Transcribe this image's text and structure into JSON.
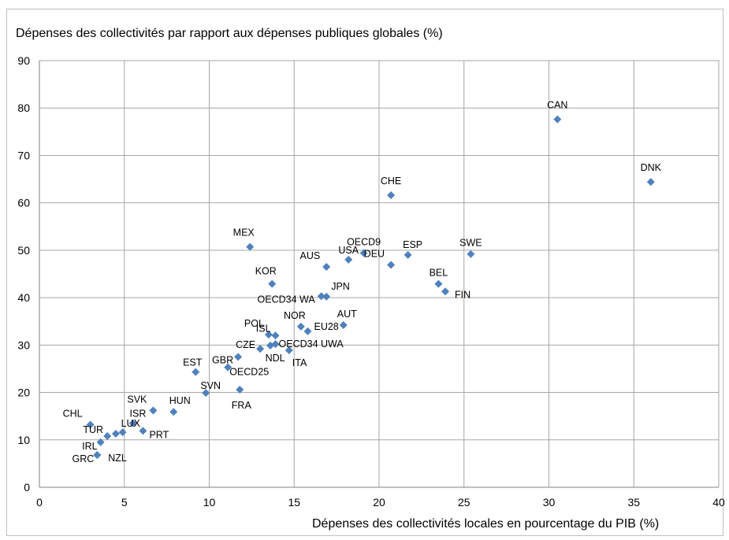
{
  "chart_data": {
    "type": "scatter",
    "title": "",
    "ylabel": "Dépenses des collectivités par rapport aux dépenses publiques globales (%)",
    "xlabel": "Dépenses des collectivités locales en pourcentage du PIB (%)",
    "xlim": [
      0,
      40
    ],
    "ylim": [
      0,
      90
    ],
    "xticks": [
      "0",
      "5",
      "10",
      "15",
      "20",
      "25",
      "30",
      "35",
      "40"
    ],
    "yticks": [
      "0",
      "10",
      "20",
      "30",
      "40",
      "50",
      "60",
      "70",
      "80",
      "90"
    ],
    "grid": true,
    "marker_color": "#4F81BD",
    "points": [
      {
        "label": "CAN",
        "x": 30.5,
        "y": 77.6
      },
      {
        "label": "DNK",
        "x": 36.0,
        "y": 64.4
      },
      {
        "label": "CHE",
        "x": 20.7,
        "y": 61.6
      },
      {
        "label": "MEX",
        "x": 12.4,
        "y": 50.7
      },
      {
        "label": "OECD9",
        "x": 19.1,
        "y": 49.4
      },
      {
        "label": "SWE",
        "x": 25.4,
        "y": 49.2
      },
      {
        "label": "ESP",
        "x": 21.7,
        "y": 49.0
      },
      {
        "label": "USA",
        "x": 18.2,
        "y": 48.0
      },
      {
        "label": "DEU",
        "x": 20.7,
        "y": 46.9
      },
      {
        "label": "AUS",
        "x": 16.9,
        "y": 46.5
      },
      {
        "label": "KOR",
        "x": 13.7,
        "y": 42.9
      },
      {
        "label": "BEL",
        "x": 23.5,
        "y": 42.9
      },
      {
        "label": "FIN",
        "x": 23.9,
        "y": 41.3
      },
      {
        "label": "OECD34 WA",
        "x": 16.6,
        "y": 40.3
      },
      {
        "label": "JPN",
        "x": 16.9,
        "y": 40.2
      },
      {
        "label": "AUT",
        "x": 17.9,
        "y": 34.2
      },
      {
        "label": "NOR",
        "x": 15.4,
        "y": 33.9
      },
      {
        "label": "EU28",
        "x": 15.8,
        "y": 32.9
      },
      {
        "label": "POL",
        "x": 13.5,
        "y": 32.2
      },
      {
        "label": "ISL",
        "x": 13.9,
        "y": 32.0
      },
      {
        "label": "OECD34 UWA",
        "x": 13.9,
        "y": 30.2
      },
      {
        "label": "NDL",
        "x": 13.6,
        "y": 29.9
      },
      {
        "label": "CZE",
        "x": 13.0,
        "y": 29.2
      },
      {
        "label": "ITA",
        "x": 14.7,
        "y": 28.9
      },
      {
        "label": "GBR",
        "x": 11.7,
        "y": 27.5
      },
      {
        "label": "OECD25",
        "x": 11.1,
        "y": 25.3
      },
      {
        "label": "EST",
        "x": 9.2,
        "y": 24.3
      },
      {
        "label": "FRA",
        "x": 11.8,
        "y": 20.6
      },
      {
        "label": "SVN",
        "x": 9.8,
        "y": 19.9
      },
      {
        "label": "SVK",
        "x": 6.7,
        "y": 16.2
      },
      {
        "label": "HUN",
        "x": 7.9,
        "y": 15.9
      },
      {
        "label": "ISR",
        "x": 5.5,
        "y": 13.5
      },
      {
        "label": "CHL",
        "x": 3.0,
        "y": 13.2
      },
      {
        "label": "PRT",
        "x": 6.1,
        "y": 11.9
      },
      {
        "label": "LUX",
        "x": 4.9,
        "y": 11.6
      },
      {
        "label": "TUR",
        "x": 4.5,
        "y": 11.3
      },
      {
        "label": "TUR2",
        "x": 4.0,
        "y": 10.8
      },
      {
        "label": "IRL",
        "x": 3.6,
        "y": 9.5
      },
      {
        "label": "GRC",
        "x": 3.4,
        "y": 6.8
      },
      {
        "label": "NZL",
        "x": 3.4,
        "y": 6.8
      }
    ],
    "labels": [
      {
        "text": "CAN",
        "x": 30.5,
        "y": 77.6
      },
      {
        "text": "DNK",
        "x": 36.0,
        "y": 64.4
      },
      {
        "text": "CHE",
        "x": 20.7,
        "y": 61.6
      },
      {
        "text": "MEX",
        "x": 12.4,
        "y": 50.7
      },
      {
        "text": "OECD9",
        "x": 19.1,
        "y": 49.4
      },
      {
        "text": "SWE",
        "x": 25.4,
        "y": 49.2
      },
      {
        "text": "ESP",
        "x": 21.7,
        "y": 49.0
      },
      {
        "text": "USA",
        "x": 18.2,
        "y": 48.0
      },
      {
        "text": "DEU",
        "x": 20.7,
        "y": 46.9
      },
      {
        "text": "AUS",
        "x": 16.9,
        "y": 46.5
      },
      {
        "text": "KOR",
        "x": 13.7,
        "y": 42.9
      },
      {
        "text": "BEL",
        "x": 23.5,
        "y": 42.9
      },
      {
        "text": "FIN",
        "x": 23.9,
        "y": 41.3
      },
      {
        "text": "OECD34 WA",
        "x": 16.6,
        "y": 40.3
      },
      {
        "text": "JPN",
        "x": 16.9,
        "y": 40.2
      },
      {
        "text": "AUT",
        "x": 17.9,
        "y": 34.2
      },
      {
        "text": "NOR",
        "x": 15.4,
        "y": 33.9
      },
      {
        "text": "EU28",
        "x": 15.8,
        "y": 32.9
      },
      {
        "text": "POL",
        "x": 13.5,
        "y": 32.2
      },
      {
        "text": "ISL",
        "x": 13.9,
        "y": 32.0
      },
      {
        "text": "OECD34 UWA",
        "x": 13.9,
        "y": 30.2
      },
      {
        "text": "NDL",
        "x": 13.6,
        "y": 29.9
      },
      {
        "text": "CZE",
        "x": 13.0,
        "y": 29.2
      },
      {
        "text": "ITA",
        "x": 14.7,
        "y": 28.9
      },
      {
        "text": "GBR",
        "x": 11.7,
        "y": 27.5
      },
      {
        "text": "OECD25",
        "x": 11.1,
        "y": 25.3
      },
      {
        "text": "EST",
        "x": 9.2,
        "y": 24.3
      },
      {
        "text": "FRA",
        "x": 11.8,
        "y": 20.6
      },
      {
        "text": "SVN",
        "x": 9.8,
        "y": 19.9
      },
      {
        "text": "SVK",
        "x": 6.7,
        "y": 16.2
      },
      {
        "text": "HUN",
        "x": 7.9,
        "y": 15.9
      },
      {
        "text": "ISR",
        "x": 5.5,
        "y": 13.5
      },
      {
        "text": "CHL",
        "x": 3.0,
        "y": 13.2
      },
      {
        "text": "PRT",
        "x": 6.1,
        "y": 11.9
      },
      {
        "text": "LUX",
        "x": 4.9,
        "y": 11.6
      },
      {
        "text": "TUR",
        "x": 4.0,
        "y": 10.8
      },
      {
        "text": "IRL",
        "x": 3.6,
        "y": 9.5
      },
      {
        "text": "GRC",
        "x": 3.4,
        "y": 6.8
      },
      {
        "text": "NZL",
        "x": 3.4,
        "y": 6.8
      }
    ]
  }
}
